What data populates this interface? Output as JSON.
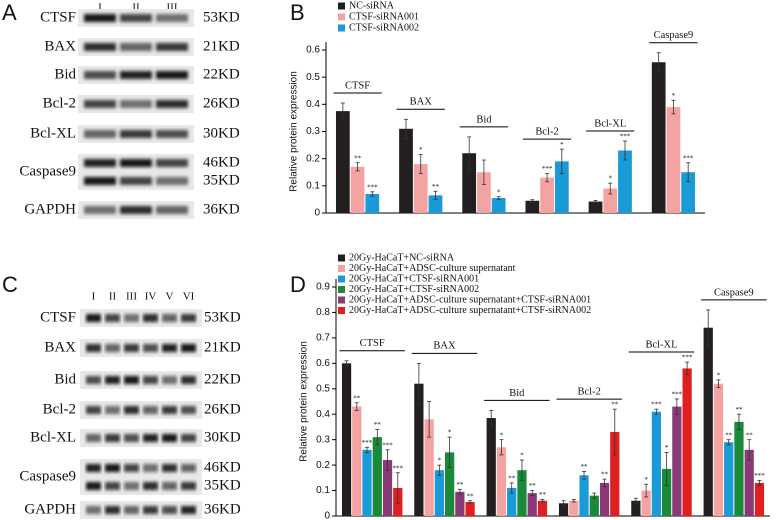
{
  "blots": [
    {
      "panel": "A",
      "lanes": [
        "I",
        "II",
        "III"
      ],
      "rows": [
        {
          "label": "CTSF",
          "sizes": [
            "53KD"
          ]
        },
        {
          "label": "BAX",
          "sizes": [
            "21KD"
          ]
        },
        {
          "label": "Bid",
          "sizes": [
            "22KD"
          ]
        },
        {
          "label": "Bcl-2",
          "sizes": [
            "26KD"
          ]
        },
        {
          "label": "Bcl-XL",
          "sizes": [
            "30KD"
          ]
        },
        {
          "label": "Caspase9",
          "sizes": [
            "46KD",
            "35KD"
          ]
        },
        {
          "label": "GAPDH",
          "sizes": [
            "36KD"
          ]
        }
      ]
    },
    {
      "panel": "C",
      "lanes": [
        "I",
        "II",
        "III",
        "IV",
        "V",
        "VI"
      ],
      "rows": [
        {
          "label": "CTSF",
          "sizes": [
            "53KD"
          ]
        },
        {
          "label": "BAX",
          "sizes": [
            "21KD"
          ]
        },
        {
          "label": "Bid",
          "sizes": [
            "22KD"
          ]
        },
        {
          "label": "Bcl-2",
          "sizes": [
            "26KD"
          ]
        },
        {
          "label": "Bcl-XL",
          "sizes": [
            "30KD"
          ]
        },
        {
          "label": "Caspase9",
          "sizes": [
            "46KD",
            "35KD"
          ]
        },
        {
          "label": "GAPDH",
          "sizes": [
            "36KD"
          ]
        }
      ]
    }
  ],
  "chart_data": [
    {
      "type": "bar",
      "panel": "B",
      "y_label": "Relative protein expression",
      "categories": [
        "CTSF",
        "BAX",
        "Bid",
        "Bcl-2",
        "Bcl-XL",
        "Caspase9"
      ],
      "ylim": [
        0,
        0.6
      ],
      "yticks": [
        0,
        0.1,
        0.2,
        0.3,
        0.4,
        0.5,
        0.6
      ],
      "legend": "top-left",
      "series": [
        {
          "name": "NC-siRNA",
          "color": "#231f20",
          "values": [
            0.375,
            0.31,
            0.22,
            0.045,
            0.042,
            0.555
          ],
          "errors": [
            0.03,
            0.035,
            0.06,
            0.004,
            0.004,
            0.035
          ],
          "stars": [
            null,
            null,
            null,
            null,
            null,
            null
          ]
        },
        {
          "name": "CTSF-siRNA001",
          "color": "#f4a3a3",
          "values": [
            0.17,
            0.18,
            0.15,
            0.13,
            0.09,
            0.39
          ],
          "errors": [
            0.015,
            0.035,
            0.045,
            0.015,
            0.02,
            0.025
          ],
          "stars": [
            "**",
            "*",
            null,
            "***",
            "*",
            "*"
          ]
        },
        {
          "name": "CTSF-siRNA002",
          "color": "#1a9ad6",
          "values": [
            0.07,
            0.065,
            0.055,
            0.19,
            0.23,
            0.15
          ],
          "errors": [
            0.008,
            0.015,
            0.005,
            0.045,
            0.035,
            0.035
          ],
          "stars": [
            "***",
            "**",
            "*",
            "*",
            "***",
            "***"
          ]
        }
      ]
    },
    {
      "type": "bar",
      "panel": "D",
      "y_label": "Relative protein expression",
      "categories": [
        "CTSF",
        "BAX",
        "Bid",
        "Bcl-2",
        "Bcl-XL",
        "Caspase9"
      ],
      "ylim": [
        0,
        0.9
      ],
      "yticks": [
        0,
        0.1,
        0.2,
        0.3,
        0.4,
        0.5,
        0.6,
        0.7,
        0.8,
        0.9
      ],
      "legend": "top-left",
      "series": [
        {
          "name": "20Gy-HaCaT+NC-siRNA",
          "color": "#231f20",
          "values": [
            0.6,
            0.52,
            0.385,
            0.05,
            0.06,
            0.74
          ],
          "errors": [
            0.01,
            0.08,
            0.03,
            0.01,
            0.01,
            0.07
          ],
          "stars": [
            null,
            null,
            null,
            null,
            null,
            null
          ]
        },
        {
          "name": "20Gy-HaCaT+ADSC-culture supernatant",
          "color": "#f4a3a3",
          "values": [
            0.43,
            0.38,
            0.27,
            0.06,
            0.1,
            0.52
          ],
          "errors": [
            0.015,
            0.07,
            0.03,
            0.005,
            0.025,
            0.015
          ],
          "stars": [
            "**",
            null,
            "*",
            null,
            "*",
            "*"
          ]
        },
        {
          "name": "20Gy-HaCaT+CTSF-siRNA001",
          "color": "#1a9ad6",
          "values": [
            0.26,
            0.18,
            0.11,
            0.16,
            0.41,
            0.29
          ],
          "errors": [
            0.01,
            0.02,
            0.02,
            0.015,
            0.01,
            0.01
          ],
          "stars": [
            "***",
            "*",
            "**",
            "**",
            "***",
            "**"
          ]
        },
        {
          "name": "20Gy-HaCaT+CTSF-siRNA002",
          "color": "#1a8a3a",
          "values": [
            0.31,
            0.25,
            0.18,
            0.08,
            0.185,
            0.37
          ],
          "errors": [
            0.03,
            0.06,
            0.04,
            0.01,
            0.065,
            0.03
          ],
          "stars": [
            "**",
            "*",
            "*",
            null,
            "*",
            "**"
          ]
        },
        {
          "name": "20Gy-HaCaT+ADSC-culture supernatant+CTSF-siRNA001",
          "color": "#8b3a78",
          "values": [
            0.22,
            0.095,
            0.09,
            0.13,
            0.43,
            0.26
          ],
          "errors": [
            0.04,
            0.01,
            0.01,
            0.015,
            0.03,
            0.04
          ],
          "stars": [
            "***",
            "**",
            "**",
            "**",
            "***",
            "**"
          ]
        },
        {
          "name": "20Gy-HaCaT+ADSC-culture supernatant+CTSF-siRNA002",
          "color": "#e02020",
          "values": [
            0.11,
            0.055,
            0.06,
            0.33,
            0.58,
            0.13
          ],
          "errors": [
            0.06,
            0.005,
            0.005,
            0.09,
            0.025,
            0.01
          ],
          "stars": [
            "***",
            "**",
            "**",
            "**",
            "***",
            "***"
          ]
        }
      ]
    }
  ]
}
